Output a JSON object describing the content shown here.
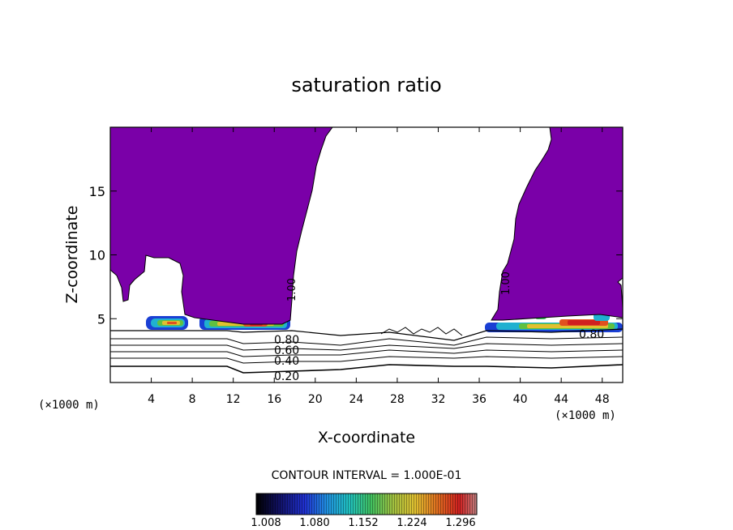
{
  "chart_data": {
    "type": "contour",
    "title": "saturation ratio",
    "xlabel": "X-coordinate",
    "ylabel": "Z-coordinate",
    "x_unit_left": "(×1000 m)",
    "x_unit_right": "(×1000 m)",
    "xlim": [
      0,
      50
    ],
    "ylim": [
      0,
      20
    ],
    "x_ticks": [
      4,
      8,
      12,
      16,
      20,
      24,
      28,
      32,
      36,
      40,
      44,
      48
    ],
    "y_ticks": [
      5,
      10,
      15
    ],
    "contour_interval_label": "CONTOUR INTERVAL = 1.000E-01",
    "contour_labels": [
      "1.00",
      "1.00",
      "0.80",
      "0.60",
      "0.40",
      "0.20",
      "0.80"
    ],
    "colorbar_ticks": [
      "1.008",
      "1.080",
      "1.152",
      "1.224",
      "1.296"
    ],
    "fill_color": "#7a00a8",
    "grid": false
  }
}
